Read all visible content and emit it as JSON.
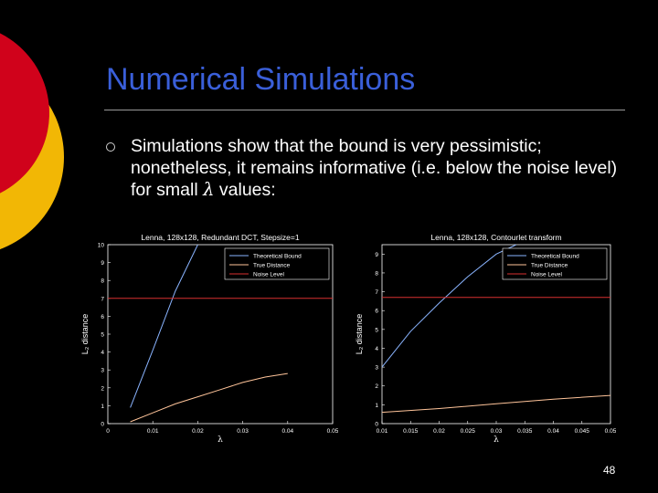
{
  "slide": {
    "title": "Numerical Simulations",
    "bullet_text_before": "Simulations show that the bound is very pessimistic; nonetheless, it remains informative (i.e. below the noise level) for small ",
    "bullet_symbol": "λ",
    "bullet_text_after": " values:",
    "page_number": "48",
    "colors": {
      "background": "#000000",
      "title": "#3a5fd9",
      "circle_red": "#d0021b",
      "circle_yellow": "#f2b705",
      "theoretical_bound": "#8ab4ff",
      "true_distance": "#ffc49a",
      "noise_level": "#d83030"
    }
  },
  "chart_data": [
    {
      "type": "line",
      "title": "Lenna, 128x128, Redundant DCT, Stepsize=1",
      "xlabel": "λ",
      "ylabel": "L₂ distance",
      "xlim": [
        0,
        0.05
      ],
      "ylim": [
        0,
        10
      ],
      "x_ticks": [
        "0",
        "0.01",
        "0.02",
        "0.03",
        "0.04",
        "0.05"
      ],
      "y_ticks": [
        "0",
        "1",
        "2",
        "3",
        "4",
        "5",
        "6",
        "7",
        "8",
        "9",
        "10"
      ],
      "legend_position": "top-right",
      "series": [
        {
          "name": "Theoretical Bound",
          "x": [
            0.005,
            0.01,
            0.015,
            0.02
          ],
          "y": [
            0.9,
            4.1,
            7.4,
            10.0
          ]
        },
        {
          "name": "True Distance",
          "x": [
            0.005,
            0.01,
            0.015,
            0.02,
            0.025,
            0.03,
            0.035,
            0.04
          ],
          "y": [
            0.1,
            0.6,
            1.1,
            1.5,
            1.9,
            2.3,
            2.6,
            2.8
          ]
        },
        {
          "name": "Noise Level",
          "x": [
            0,
            0.05
          ],
          "y": [
            7.0,
            7.0
          ]
        }
      ]
    },
    {
      "type": "line",
      "title": "Lenna, 128x128, Contourlet transform",
      "xlabel": "λ",
      "ylabel": "L₂ distance",
      "xlim": [
        0.01,
        0.05
      ],
      "ylim": [
        0,
        9.5
      ],
      "x_ticks": [
        "0.01",
        "0.015",
        "0.02",
        "0.025",
        "0.03",
        "0.035",
        "0.04",
        "0.045",
        "0.05"
      ],
      "y_ticks": [
        "0",
        "1",
        "2",
        "3",
        "4",
        "5",
        "6",
        "7",
        "8",
        "9"
      ],
      "legend_position": "top-right",
      "series": [
        {
          "name": "Theoretical Bound",
          "x": [
            0.01,
            0.015,
            0.02,
            0.025,
            0.03,
            0.0335
          ],
          "y": [
            3.0,
            4.9,
            6.4,
            7.8,
            9.0,
            9.5
          ]
        },
        {
          "name": "True Distance",
          "x": [
            0.01,
            0.02,
            0.03,
            0.04,
            0.05
          ],
          "y": [
            0.6,
            0.8,
            1.05,
            1.3,
            1.5
          ]
        },
        {
          "name": "Noise Level",
          "x": [
            0.01,
            0.05
          ],
          "y": [
            6.7,
            6.7
          ]
        }
      ]
    }
  ]
}
